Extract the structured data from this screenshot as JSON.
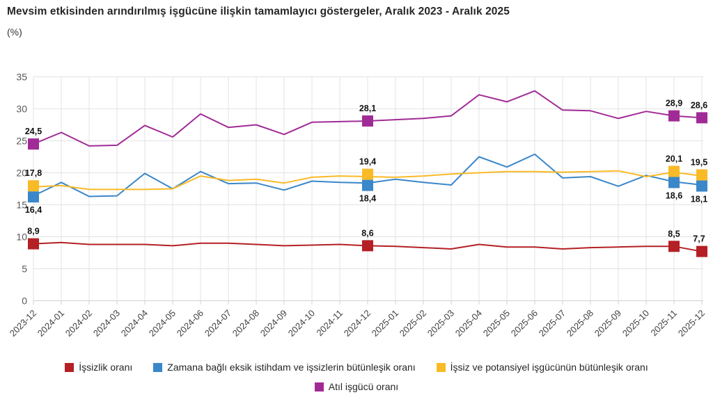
{
  "header": {
    "title": "Mevsim etkisinden arındırılmış işgücüne ilişkin tamamlayıcı göstergeler, Aralık 2023 - Aralık 2025",
    "subtitle": "(%)"
  },
  "chart_data": {
    "type": "line",
    "unit": "%",
    "decimal_separator": ",",
    "grid": true,
    "ylim": [
      0,
      35
    ],
    "ytick_step": 5,
    "categories": [
      "2023-12",
      "2024-01",
      "2024-02",
      "2024-03",
      "2024-04",
      "2024-05",
      "2024-06",
      "2024-07",
      "2024-08",
      "2024-09",
      "2024-10",
      "2024-11",
      "2024-12",
      "2025-01",
      "2025-02",
      "2025-03",
      "2025-04",
      "2025-05",
      "2025-06",
      "2025-07",
      "2025-08",
      "2025-09",
      "2025-10",
      "2025-11",
      "2025-12"
    ],
    "series": [
      {
        "name": "İşsizlik oranı",
        "color": "#b42025",
        "label_side": "above",
        "values": [
          8.9,
          9.1,
          8.8,
          8.8,
          8.8,
          8.6,
          9.0,
          9.0,
          8.8,
          8.6,
          8.7,
          8.8,
          8.6,
          8.5,
          8.3,
          8.1,
          8.8,
          8.4,
          8.4,
          8.1,
          8.3,
          8.4,
          8.5,
          8.5,
          7.7
        ]
      },
      {
        "name": "Zamana bağlı eksik istihdam ve işsizlerin bütünleşik oranı",
        "color": "#3a87c9",
        "label_side": "below",
        "values": [
          16.4,
          18.5,
          16.3,
          16.4,
          19.9,
          17.5,
          20.2,
          18.3,
          18.4,
          17.3,
          18.7,
          18.5,
          18.4,
          19.0,
          18.5,
          18.1,
          22.5,
          20.9,
          22.9,
          19.2,
          19.4,
          17.9,
          19.6,
          18.6,
          18.1
        ]
      },
      {
        "name": "İşsiz ve potansiyel işgücünün bütünleşik oranı",
        "color": "#f9ba27",
        "label_side": "above",
        "values": [
          17.8,
          18.0,
          17.4,
          17.4,
          17.4,
          17.5,
          19.5,
          18.8,
          19.0,
          18.4,
          19.3,
          19.5,
          19.4,
          19.3,
          19.5,
          19.8,
          20.0,
          20.2,
          20.2,
          20.1,
          20.2,
          20.3,
          19.4,
          20.1,
          19.5
        ]
      },
      {
        "name": "Atıl işgücü oranı",
        "color": "#a12b96",
        "label_side": "above",
        "values": [
          24.5,
          26.3,
          24.2,
          24.3,
          27.4,
          25.6,
          29.2,
          27.1,
          27.5,
          26.0,
          27.9,
          28.0,
          28.1,
          28.3,
          28.5,
          28.9,
          32.2,
          31.1,
          32.8,
          29.8,
          29.7,
          28.5,
          29.6,
          28.9,
          28.6
        ]
      }
    ],
    "labeled_categories": [
      "2023-12",
      "2024-12",
      "2025-11",
      "2025-12"
    ],
    "labeled_values": {
      "2023-12": {
        "İşsizlik oranı": "8,9",
        "Zamana bağlı eksik istihdam ve işsizlerin bütünleşik oranı": "16,4",
        "İşsiz ve potansiyel işgücünün bütünleşik oranı": "17,8",
        "Atıl işgücü oranı": "24,5"
      },
      "2024-12": {
        "İşsizlik oranı": "8,6",
        "Zamana bağlı eksik istihdam ve işsizlerin bütünleşik oranı": "18,4",
        "İşsiz ve potansiyel işgücünün bütünleşik oranı": "19,4",
        "Atıl işgücü oranı": "28,1"
      },
      "2025-11": {
        "İşsizlik oranı": "8,5",
        "Zamana bağlı eksik istihdam ve işsizlerin bütünleşik oranı": "18,6",
        "İşsiz ve potansiyel işgücünün bütünleşik oranı": "20,1",
        "Atıl işgücü oranı": "28,9"
      },
      "2025-12": {
        "İşsizlik oranı": "7,7",
        "Zamana bağlı eksik istihdam ve işsizlerin bütünleşik oranı": "18,1",
        "İşsiz ve potansiyel işgücünün bütünleşik oranı": "19,5",
        "Atıl işgücü oranı": "28,6"
      }
    },
    "legend_rows": [
      [
        0,
        1,
        2
      ],
      [
        3
      ]
    ],
    "colors": {
      "grid": "#e3e3e3",
      "axis": "#d0d0d0",
      "ytick_text": "#595959",
      "xtick_text": "#404040",
      "value_label_text": "#111111"
    }
  }
}
